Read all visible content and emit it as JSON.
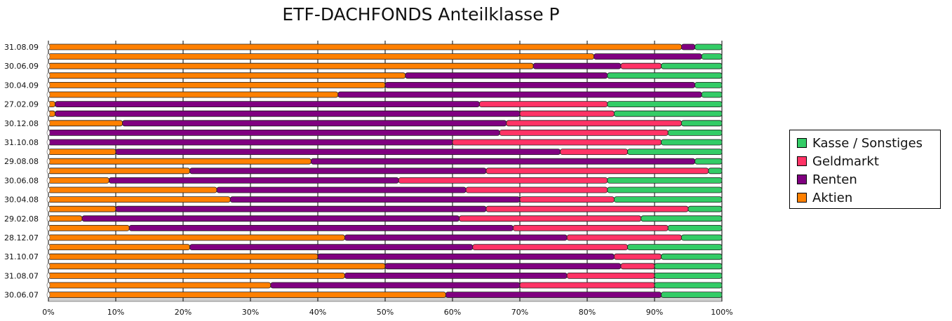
{
  "chart_data": {
    "type": "bar",
    "orientation": "horizontal",
    "stacked": true,
    "title": "ETF-DACHFONDS Anteilklasse P",
    "xlabel": "",
    "ylabel": "",
    "xlim": [
      0,
      100
    ],
    "x_ticks": [
      "0%",
      "10%",
      "20%",
      "30%",
      "40%",
      "50%",
      "60%",
      "70%",
      "80%",
      "90%",
      "100%"
    ],
    "grid": true,
    "legend_position": "right",
    "categories": [
      "31.08.09",
      "",
      "30.06.09",
      "",
      "30.04.09",
      "",
      "27.02.09",
      "",
      "30.12.08",
      "",
      "31.10.08",
      "",
      "29.08.08",
      "",
      "30.06.08",
      "",
      "30.04.08",
      "",
      "29.02.08",
      "",
      "28.12.07",
      "",
      "31.10.07",
      "",
      "31.08.07",
      "",
      "30.06.07"
    ],
    "series": [
      {
        "name": "Aktien",
        "color": "#ff8000",
        "values": [
          94,
          81,
          72,
          53,
          50,
          43,
          1,
          1,
          11,
          0,
          0,
          10,
          39,
          21,
          9,
          25,
          27,
          10,
          5,
          12,
          44,
          21,
          40,
          50,
          44,
          33,
          59
        ]
      },
      {
        "name": "Renten",
        "color": "#800080",
        "values": [
          2,
          16,
          13,
          30,
          46,
          54,
          63,
          69,
          57,
          67,
          60,
          66,
          57,
          44,
          43,
          37,
          43,
          55,
          56,
          57,
          33,
          42,
          44,
          35,
          33,
          37,
          32
        ]
      },
      {
        "name": "Geldmarkt",
        "color": "#ff3366",
        "values": [
          0,
          0,
          6,
          0,
          0,
          0,
          19,
          14,
          26,
          25,
          31,
          10,
          0,
          33,
          31,
          21,
          14,
          30,
          27,
          23,
          17,
          23,
          7,
          5,
          13,
          20,
          0
        ]
      },
      {
        "name": "Kasse / Sonstiges",
        "color": "#33cc66",
        "values": [
          4,
          3,
          9,
          17,
          4,
          3,
          17,
          16,
          6,
          8,
          9,
          14,
          4,
          2,
          17,
          17,
          16,
          5,
          12,
          8,
          6,
          14,
          9,
          10,
          10,
          10,
          9
        ]
      }
    ],
    "legend_order": [
      "Kasse / Sonstiges",
      "Geldmarkt",
      "Renten",
      "Aktien"
    ]
  }
}
